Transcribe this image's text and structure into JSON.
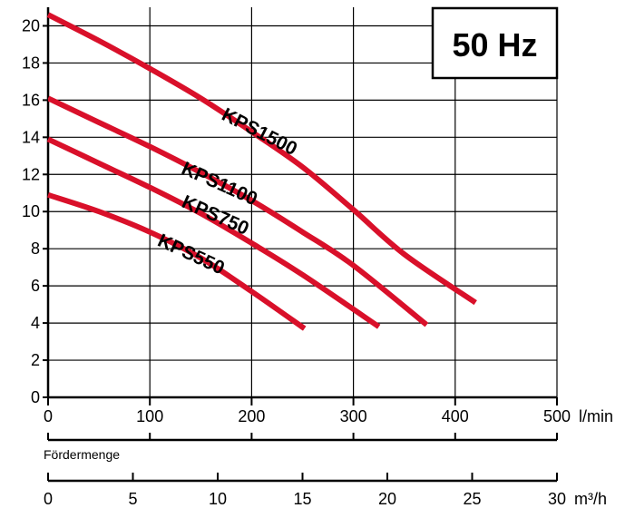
{
  "chart_data": {
    "type": "line",
    "badge": "50 Hz",
    "xlabel": "Fördermenge",
    "x_unit": "l/min",
    "x2_unit": "m³/h",
    "xlim": [
      0,
      500
    ],
    "ylim": [
      0,
      21
    ],
    "x_ticks": [
      0,
      100,
      200,
      300,
      400,
      500
    ],
    "x_tick_labels": [
      "0",
      "100",
      "200",
      "300",
      "400",
      "500"
    ],
    "y_ticks": [
      0,
      2,
      4,
      6,
      8,
      10,
      12,
      14,
      16,
      18,
      20
    ],
    "y_tick_labels": [
      "0",
      "2",
      "4",
      "6",
      "8",
      "10",
      "12",
      "14",
      "16",
      "18",
      "20"
    ],
    "x2_lim": [
      0,
      30
    ],
    "x2_ticks": [
      0,
      5,
      10,
      15,
      20,
      25,
      30
    ],
    "x2_tick_labels": [
      "0",
      "5",
      "10",
      "15",
      "20",
      "25",
      "30"
    ],
    "grid": true,
    "line_color": "#d9102a",
    "series": [
      {
        "name": "KPS1500",
        "x": [
          0,
          50,
          100,
          150,
          200,
          250,
          300,
          350,
          420
        ],
        "y": [
          20.6,
          19.2,
          17.7,
          16.1,
          14.3,
          12.4,
          10.1,
          7.7,
          5.1
        ]
      },
      {
        "name": "KPS1100",
        "x": [
          0,
          50,
          100,
          150,
          200,
          250,
          300,
          372
        ],
        "y": [
          16.1,
          14.8,
          13.5,
          12.1,
          10.6,
          8.9,
          7.1,
          3.9
        ]
      },
      {
        "name": "KPS750",
        "x": [
          0,
          50,
          100,
          150,
          200,
          250,
          325
        ],
        "y": [
          13.9,
          12.6,
          11.3,
          9.9,
          8.3,
          6.6,
          3.8
        ]
      },
      {
        "name": "KPS550",
        "x": [
          0,
          50,
          100,
          150,
          200,
          252
        ],
        "y": [
          10.9,
          10.0,
          8.9,
          7.5,
          5.7,
          3.7
        ]
      }
    ]
  }
}
